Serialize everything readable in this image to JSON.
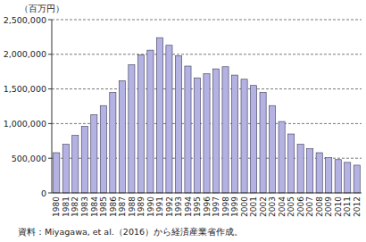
{
  "chart_data": {
    "type": "bar",
    "ylabel": "（百万円）",
    "annotations": [
      "資料：Miyagawa, et al.（2016）から経済産業省作成。"
    ],
    "categories": [
      "1980",
      "1981",
      "1982",
      "1983",
      "1984",
      "1985",
      "1986",
      "1987",
      "1988",
      "1989",
      "1990",
      "1991",
      "1992",
      "1993",
      "1994",
      "1995",
      "1996",
      "1997",
      "1998",
      "1999",
      "2000",
      "2001",
      "2002",
      "2003",
      "2004",
      "2005",
      "2006",
      "2007",
      "2008",
      "2009",
      "2010",
      "2011",
      "2012"
    ],
    "values": [
      580000,
      700000,
      830000,
      960000,
      1130000,
      1260000,
      1450000,
      1620000,
      1850000,
      1990000,
      2060000,
      2240000,
      2130000,
      1980000,
      1830000,
      1660000,
      1720000,
      1790000,
      1820000,
      1700000,
      1640000,
      1550000,
      1450000,
      1260000,
      1030000,
      850000,
      700000,
      640000,
      580000,
      510000,
      480000,
      440000,
      400000
    ],
    "color": "#b4b1e3",
    "ylim": [
      0,
      2500000
    ],
    "yticks": [
      0,
      {
        "value": 500000,
        "label": "500,000"
      },
      {
        "value": 1000000,
        "label": "1,000,000"
      },
      {
        "value": 1500000,
        "label": "1,500,000"
      },
      {
        "value": 2000000,
        "label": "2,000,000"
      },
      {
        "value": 2500000,
        "label": "2,500,000"
      }
    ],
    "grid": true
  }
}
